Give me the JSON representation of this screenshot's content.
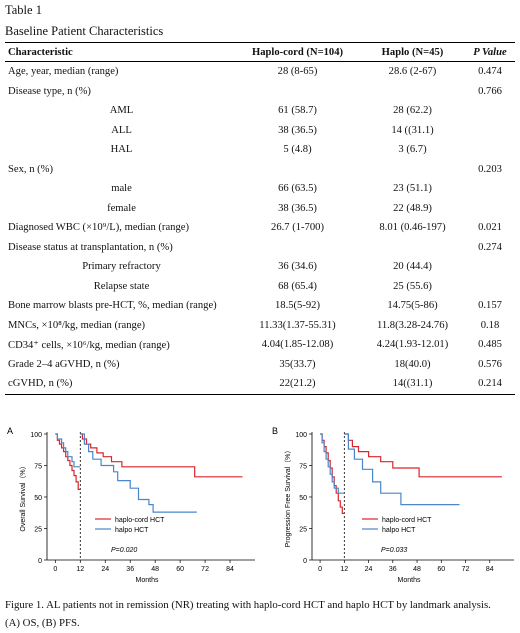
{
  "table_caption": "Table 1",
  "table_title": "Baseline Patient Characteristics",
  "columns": [
    "Characteristic",
    "Haplo-cord (N=104)",
    "Haplo (N=45)",
    "P Value"
  ],
  "rows": [
    {
      "label": "Age, year, median (range)",
      "sub": false,
      "a": "28 (8-65)",
      "b": "28.6 (2-67)",
      "p": "0.474"
    },
    {
      "label": "Disease type, n (%)",
      "sub": false,
      "a": "",
      "b": "",
      "p": "0.766"
    },
    {
      "label": "AML",
      "sub": true,
      "a": "61 (58.7)",
      "b": "28 (62.2)",
      "p": ""
    },
    {
      "label": "ALL",
      "sub": true,
      "a": "38 (36.5)",
      "b": "14 ((31.1)",
      "p": ""
    },
    {
      "label": "HAL",
      "sub": true,
      "a": "5 (4.8)",
      "b": "3 (6.7)",
      "p": ""
    },
    {
      "label": "Sex, n (%)",
      "sub": false,
      "a": "",
      "b": "",
      "p": "0.203"
    },
    {
      "label": "male",
      "sub": true,
      "a": "66 (63.5)",
      "b": "23 (51.1)",
      "p": ""
    },
    {
      "label": "female",
      "sub": true,
      "a": "38 (36.5)",
      "b": "22 (48.9)",
      "p": ""
    },
    {
      "label": "Diagnosed WBC (×10⁹/L), median (range)",
      "sub": false,
      "a": "26.7 (1-700)",
      "b": "8.01 (0.46-197)",
      "p": "0.021"
    },
    {
      "label": "Disease status at transplantation, n (%)",
      "sub": false,
      "a": "",
      "b": "",
      "p": "0.274"
    },
    {
      "label": "Primary refractory",
      "sub": true,
      "a": "36 (34.6)",
      "b": "20 (44.4)",
      "p": ""
    },
    {
      "label": "Relapse state",
      "sub": true,
      "a": "68 (65.4)",
      "b": "25 (55.6)",
      "p": ""
    },
    {
      "label": "Bone marrow blasts pre-HCT, %, median (range)",
      "sub": false,
      "a": "18.5(5-92)",
      "b": "14.75(5-86)",
      "p": "0.157"
    },
    {
      "label": "MNCs, ×10⁸/kg, median (range)",
      "sub": false,
      "a": "11.33(1.37-55.31)",
      "b": "11.8(3.28-24.76)",
      "p": "0.18"
    },
    {
      "label": "CD34⁺ cells, ×10⁶/kg, median (range)",
      "sub": false,
      "a": "4.04(1.85-12.08)",
      "b": "4.24(1.93-12.01)",
      "p": "0.485"
    },
    {
      "label": "Grade 2–4 aGVHD, n (%)",
      "sub": false,
      "a": "35(33.7)",
      "b": "18(40.0)",
      "p": "0.576"
    },
    {
      "label": "cGVHD, n (%)",
      "sub": false,
      "a": "22(21.2)",
      "b": "14((31.1)",
      "p": "0.214"
    }
  ],
  "chart_data": [
    {
      "type": "line",
      "panel": "A",
      "ylabel": "Overall Survival（%）",
      "xlabel": "Months",
      "xticks": [
        "0",
        "12",
        "24",
        "36",
        "48",
        "60",
        "72",
        "84"
      ],
      "yticks": [
        "0",
        "25",
        "50",
        "75",
        "100"
      ],
      "xlim": [
        -4,
        96
      ],
      "ylim": [
        0,
        100
      ],
      "landmark": 12,
      "annotation": "P=0.020",
      "colors": {
        "haplo_cord": "#d9262b",
        "haplo": "#4a86c8"
      },
      "series": [
        {
          "name": "haplo-cord HCT",
          "x": [
            0,
            1,
            1,
            2,
            2,
            3,
            3,
            4,
            4,
            5,
            5,
            6,
            6,
            7,
            7,
            8,
            8,
            9,
            9,
            10,
            10,
            11,
            11,
            12,
            12,
            13,
            13,
            15,
            15,
            17,
            17,
            20,
            20,
            23,
            23,
            27,
            27,
            32,
            32,
            67,
            67,
            90
          ],
          "y": [
            100,
            100,
            95,
            95,
            92,
            92,
            89,
            89,
            86,
            86,
            82,
            82,
            79,
            79,
            75,
            75,
            71,
            71,
            67,
            67,
            62,
            62,
            56,
            56,
            100,
            100,
            96,
            96,
            92,
            92,
            89,
            89,
            85,
            85,
            82,
            82,
            78,
            78,
            74,
            74,
            66,
            66
          ]
        },
        {
          "name": "halpo HCT",
          "x": [
            0,
            1,
            1,
            3,
            3,
            4,
            4,
            5,
            5,
            6,
            6,
            8,
            8,
            9,
            9,
            12,
            12,
            14,
            14,
            16,
            16,
            18,
            18,
            22,
            22,
            28,
            28,
            30,
            30,
            36,
            36,
            40,
            40,
            45,
            45,
            47,
            47,
            68
          ],
          "y": [
            100,
            100,
            96,
            96,
            93,
            93,
            89,
            89,
            86,
            86,
            82,
            82,
            78,
            78,
            74,
            74,
            100,
            100,
            92,
            92,
            86,
            86,
            80,
            80,
            75,
            75,
            70,
            70,
            63,
            63,
            57,
            57,
            48,
            48,
            44,
            44,
            38,
            38
          ]
        }
      ]
    },
    {
      "type": "line",
      "panel": "B",
      "ylabel": "Progression Free Survival（%）",
      "xlabel": "Months",
      "xticks": [
        "0",
        "12",
        "24",
        "36",
        "48",
        "60",
        "72",
        "84"
      ],
      "yticks": [
        "0",
        "25",
        "50",
        "75",
        "100"
      ],
      "xlim": [
        -4,
        96
      ],
      "ylim": [
        0,
        100
      ],
      "landmark": 12,
      "annotation": "P=0.033",
      "colors": {
        "haplo_cord": "#d9262b",
        "haplo": "#4a86c8"
      },
      "series": [
        {
          "name": "haplo-cord HCT",
          "x": [
            0,
            1,
            1,
            2,
            2,
            3,
            3,
            4,
            4,
            5,
            5,
            6,
            6,
            7,
            7,
            8,
            8,
            9,
            9,
            10,
            10,
            11,
            11,
            12,
            12,
            14,
            14,
            16,
            16,
            19,
            19,
            24,
            24,
            30,
            30,
            36,
            36,
            49,
            49,
            90
          ],
          "y": [
            100,
            100,
            95,
            95,
            90,
            90,
            85,
            85,
            79,
            79,
            73,
            73,
            66,
            66,
            59,
            59,
            53,
            53,
            47,
            47,
            42,
            42,
            37,
            37,
            100,
            100,
            95,
            95,
            90,
            90,
            86,
            86,
            82,
            82,
            78,
            78,
            73,
            73,
            66,
            66
          ]
        },
        {
          "name": "halpo HCT",
          "x": [
            0,
            1,
            1,
            2,
            2,
            3,
            3,
            4,
            4,
            5,
            5,
            6,
            6,
            7,
            7,
            9,
            9,
            12,
            12,
            14,
            14,
            17,
            17,
            21,
            21,
            26,
            26,
            30,
            30,
            40,
            40,
            69
          ],
          "y": [
            100,
            100,
            93,
            93,
            86,
            86,
            80,
            80,
            74,
            74,
            68,
            68,
            62,
            62,
            57,
            57,
            53,
            53,
            100,
            100,
            88,
            88,
            80,
            80,
            72,
            72,
            62,
            62,
            53,
            53,
            44,
            44
          ]
        }
      ]
    }
  ],
  "figure_caption_line1": "Figure 1. AL patients not in remission (NR) treating with haplo-cord HCT and haplo HCT by landmark analysis.",
  "figure_caption_line2": "(A) OS, (B) PFS."
}
